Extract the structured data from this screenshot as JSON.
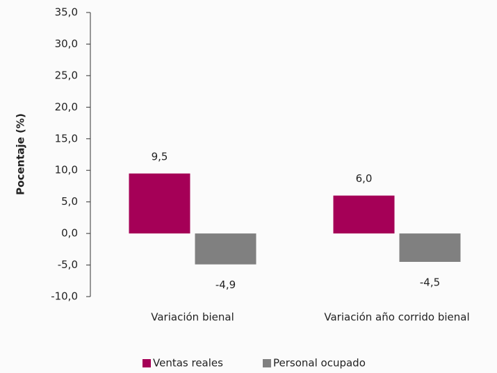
{
  "chart_data": {
    "type": "bar",
    "y_label": "Pocentaje (%)",
    "categories": [
      "Variación bienal",
      "Variación año corrido bienal"
    ],
    "series": [
      {
        "name": "Ventas reales",
        "color": "#a50057",
        "values": [
          9.5,
          6.0
        ],
        "value_labels": [
          "9,5",
          "6,0"
        ]
      },
      {
        "name": "Personal ocupado",
        "color": "#808080",
        "values": [
          -4.9,
          -4.5
        ],
        "value_labels": [
          "-4,9",
          "-4,5"
        ]
      }
    ],
    "ylim": [
      -10,
      35
    ],
    "yticks": [
      {
        "value": -10,
        "label": "-10,0"
      },
      {
        "value": -5,
        "label": "-5,0"
      },
      {
        "value": 0,
        "label": "0,0"
      },
      {
        "value": 5,
        "label": "5,0"
      },
      {
        "value": 10,
        "label": "10,0"
      },
      {
        "value": 15,
        "label": "15,0"
      },
      {
        "value": 20,
        "label": "20,0"
      },
      {
        "value": 25,
        "label": "25,0"
      },
      {
        "value": 30,
        "label": "30,0"
      },
      {
        "value": 35,
        "label": "35,0"
      }
    ],
    "legend": "bottom"
  }
}
